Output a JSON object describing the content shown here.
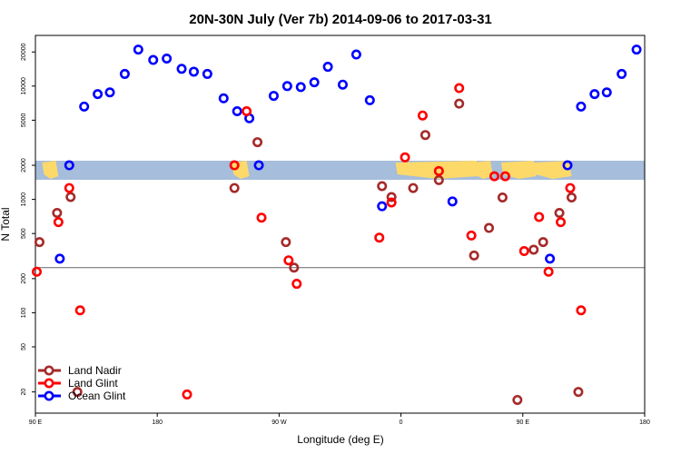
{
  "chart_data": {
    "type": "scatter",
    "title": "20N-30N July (Ver 7b)   2014-09-06 to 2017-03-31",
    "xlabel": "Longitude (deg E)",
    "ylabel": "N Total",
    "x_scale": "linear",
    "y_scale": "log",
    "xlim": [
      90,
      540
    ],
    "ylim": [
      13,
      28000
    ],
    "x_ticks": [
      {
        "value": 90,
        "label": "90 E"
      },
      {
        "value": 180,
        "label": "180"
      },
      {
        "value": 270,
        "label": "90 W"
      },
      {
        "value": 360,
        "label": "0"
      },
      {
        "value": 450,
        "label": "90 E"
      },
      {
        "value": 540,
        "label": "180"
      }
    ],
    "y_ticks": [
      20,
      50,
      100,
      200,
      500,
      1000,
      2000,
      5000,
      10000,
      20000
    ],
    "reference_line_y": 250,
    "grid": false,
    "legend_position": "bottom-left",
    "background_map": "world land/ocean strip",
    "series": [
      {
        "name": "Land Nadir",
        "color": "#a52a2a",
        "points": [
          [
            93,
            420
          ],
          [
            106,
            760
          ],
          [
            116,
            1050
          ],
          [
            121,
            20
          ],
          [
            237,
            1260
          ],
          [
            254,
            3200
          ],
          [
            275,
            420
          ],
          [
            281,
            250
          ],
          [
            346,
            1310
          ],
          [
            353,
            1050
          ],
          [
            369,
            1260
          ],
          [
            378,
            3700
          ],
          [
            388,
            1480
          ],
          [
            403,
            7000
          ],
          [
            414,
            320
          ],
          [
            425,
            560
          ],
          [
            435,
            1040
          ],
          [
            446,
            17
          ],
          [
            458,
            360
          ],
          [
            465,
            420
          ],
          [
            477,
            760
          ],
          [
            486,
            1040
          ],
          [
            491,
            20
          ]
        ]
      },
      {
        "name": "Land Glint",
        "color": "#ff0000",
        "points": [
          [
            91,
            230
          ],
          [
            107,
            630
          ],
          [
            115,
            1260
          ],
          [
            123,
            105
          ],
          [
            202,
            19
          ],
          [
            237,
            2000
          ],
          [
            246,
            6000
          ],
          [
            257,
            690
          ],
          [
            277,
            290
          ],
          [
            283,
            180
          ],
          [
            344,
            460
          ],
          [
            353,
            940
          ],
          [
            363,
            2350
          ],
          [
            376,
            5500
          ],
          [
            388,
            1780
          ],
          [
            403,
            9600
          ],
          [
            412,
            480
          ],
          [
            429,
            1600
          ],
          [
            437,
            1600
          ],
          [
            451,
            350
          ],
          [
            462,
            700
          ],
          [
            469,
            230
          ],
          [
            478,
            630
          ],
          [
            485,
            1260
          ],
          [
            493,
            105
          ]
        ]
      },
      {
        "name": "Ocean Glint",
        "color": "#0000ff",
        "points": [
          [
            115,
            2000
          ],
          [
            108,
            300
          ],
          [
            126,
            6600
          ],
          [
            136,
            8500
          ],
          [
            145,
            8800
          ],
          [
            156,
            12800
          ],
          [
            166,
            21000
          ],
          [
            177,
            17000
          ],
          [
            187,
            17500
          ],
          [
            198,
            14200
          ],
          [
            207,
            13400
          ],
          [
            217,
            12800
          ],
          [
            229,
            7800
          ],
          [
            239,
            6000
          ],
          [
            248,
            5200
          ],
          [
            255,
            2000
          ],
          [
            266,
            8200
          ],
          [
            276,
            10000
          ],
          [
            286,
            9800
          ],
          [
            296,
            10800
          ],
          [
            306,
            14800
          ],
          [
            317,
            10300
          ],
          [
            327,
            19000
          ],
          [
            337,
            7500
          ],
          [
            346,
            870
          ],
          [
            398,
            960
          ],
          [
            470,
            300
          ],
          [
            483,
            2000
          ],
          [
            493,
            6600
          ],
          [
            503,
            8500
          ],
          [
            512,
            8800
          ],
          [
            523,
            12800
          ],
          [
            534,
            21000
          ],
          [
            543,
            17000
          ]
        ]
      }
    ]
  },
  "legend": {
    "items": [
      {
        "label": "Land Nadir",
        "color": "#a52a2a"
      },
      {
        "label": "Land Glint",
        "color": "#ff0000"
      },
      {
        "label": "Ocean Glint",
        "color": "#0000ff"
      }
    ]
  },
  "colors": {
    "ocean": "#a6bddb",
    "land": "#fdd96a",
    "reference_line": "#666666"
  }
}
